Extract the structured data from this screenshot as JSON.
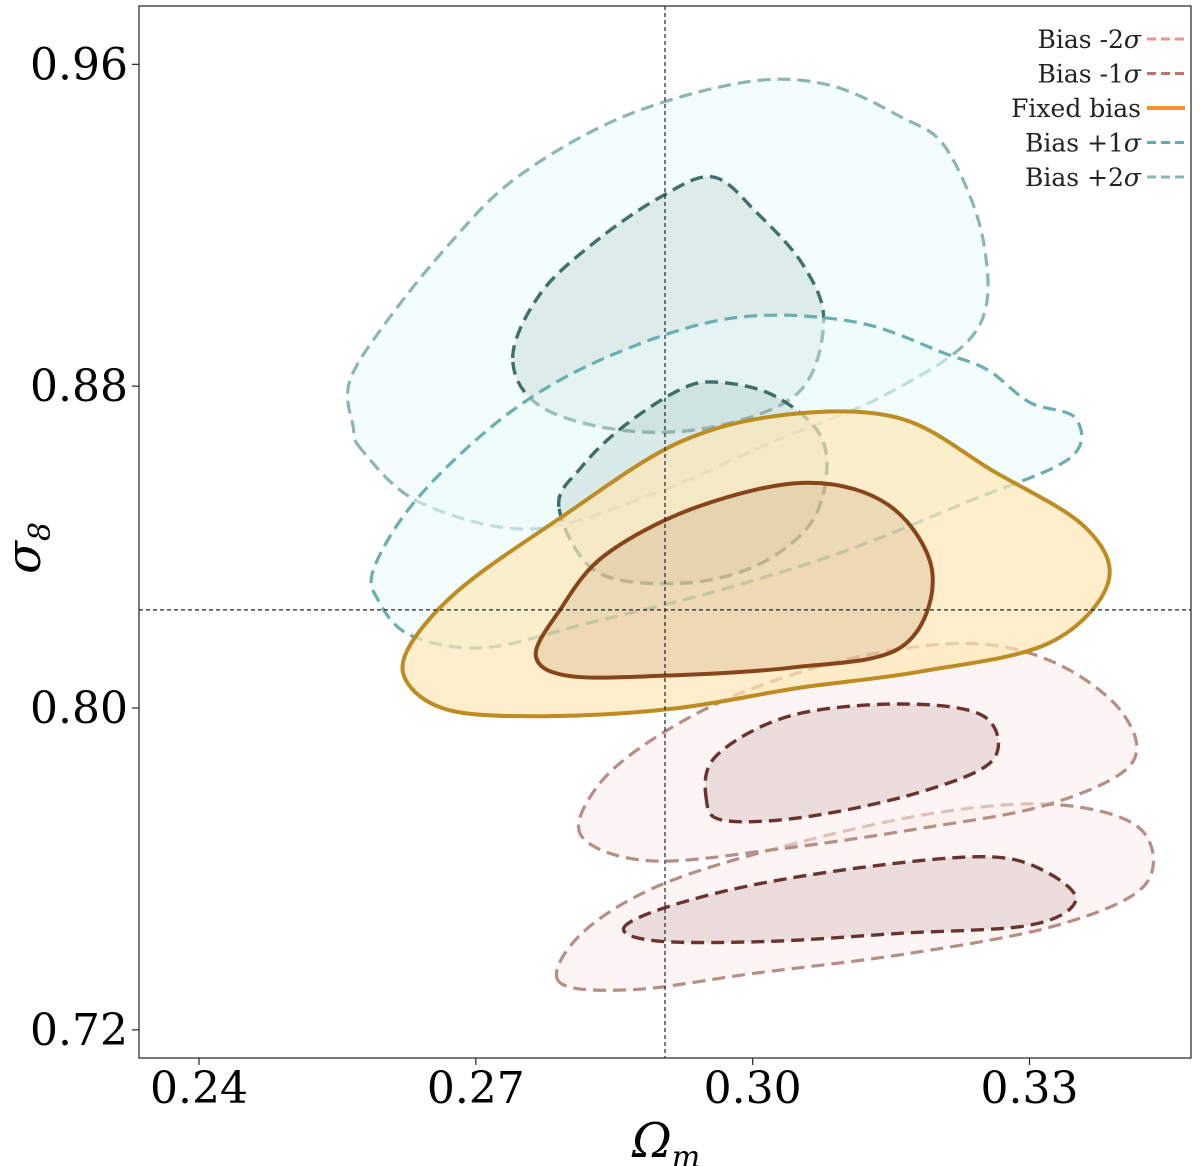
{
  "chart_data": {
    "type": "contour",
    "xlabel": {
      "base": "Ω",
      "sub": "m"
    },
    "ylabel": {
      "base": "σ",
      "sub": "8"
    },
    "xlim": [
      0.2335,
      0.3475
    ],
    "ylim": [
      0.713,
      0.9745
    ],
    "xticks": [
      0.24,
      0.27,
      0.3,
      0.33
    ],
    "xtick_labels": [
      "0.24",
      "0.27",
      "0.30",
      "0.33"
    ],
    "yticks": [
      0.72,
      0.8,
      0.88,
      0.96
    ],
    "ytick_labels": [
      "0.72",
      "0.80",
      "0.88",
      "0.96"
    ],
    "fiducial": {
      "x": 0.2905,
      "y": 0.8244
    },
    "legend_position": "top-right",
    "series": [
      {
        "name": "Bias +2σ",
        "label_base": "Bias +2",
        "label_symbol": "σ",
        "color": "#8fb5b3",
        "line_color": "#8fb5b3",
        "inner_color": "#41706c",
        "fill": "#e9fcfc",
        "style": "dashed",
        "center": [
          0.2975,
          0.8905
        ],
        "contours": {
          "outer": [
            [
              0.2577,
              0.864
            ],
            [
              0.2567,
              0.87
            ],
            [
              0.2563,
              0.881
            ],
            [
              0.26,
              0.895
            ],
            [
              0.267,
              0.915
            ],
            [
              0.2745,
              0.932
            ],
            [
              0.286,
              0.947
            ],
            [
              0.299,
              0.9555
            ],
            [
              0.308,
              0.955
            ],
            [
              0.316,
              0.947
            ],
            [
              0.321,
              0.939
            ],
            [
              0.325,
              0.916
            ],
            [
              0.3243,
              0.894
            ],
            [
              0.3145,
              0.878
            ],
            [
              0.302,
              0.866
            ],
            [
              0.289,
              0.853
            ],
            [
              0.276,
              0.8445
            ],
            [
              0.264,
              0.851
            ]
          ],
          "inner": [
            [
              0.274,
              0.887
            ],
            [
              0.277,
              0.903
            ],
            [
              0.283,
              0.916
            ],
            [
              0.29,
              0.927
            ],
            [
              0.2957,
              0.932
            ],
            [
              0.3005,
              0.923
            ],
            [
              0.3055,
              0.91
            ],
            [
              0.3077,
              0.896
            ],
            [
              0.305,
              0.8785
            ],
            [
              0.296,
              0.87
            ],
            [
              0.286,
              0.869
            ],
            [
              0.277,
              0.875
            ]
          ]
        }
      },
      {
        "name": "Bias +1σ",
        "label_base": "Bias +1",
        "label_symbol": "σ",
        "color": "#5bafae",
        "line_color": "#6aaeae",
        "inner_color": "#3e6d69",
        "fill": "#e9fcfc",
        "style": "dashed",
        "center": [
          0.2975,
          0.86
        ],
        "contours": {
          "outer": [
            [
              0.2595,
              0.8265
            ],
            [
              0.259,
              0.835
            ],
            [
              0.264,
              0.853
            ],
            [
              0.274,
              0.874
            ],
            [
              0.285,
              0.888
            ],
            [
              0.298,
              0.897
            ],
            [
              0.311,
              0.896
            ],
            [
              0.321,
              0.888
            ],
            [
              0.3255,
              0.884
            ],
            [
              0.33,
              0.876
            ],
            [
              0.335,
              0.872
            ],
            [
              0.3343,
              0.862
            ],
            [
              0.323,
              0.851
            ],
            [
              0.31,
              0.839
            ],
            [
              0.296,
              0.829
            ],
            [
              0.282,
              0.821
            ],
            [
              0.271,
              0.815
            ],
            [
              0.263,
              0.818
            ]
          ],
          "inner": [
            [
              0.279,
              0.85
            ],
            [
              0.2815,
              0.86
            ],
            [
              0.286,
              0.87
            ],
            [
              0.292,
              0.879
            ],
            [
              0.296,
              0.881
            ],
            [
              0.302,
              0.878
            ],
            [
              0.307,
              0.869
            ],
            [
              0.308,
              0.858
            ],
            [
              0.306,
              0.845
            ],
            [
              0.3,
              0.835
            ],
            [
              0.292,
              0.831
            ],
            [
              0.283,
              0.834
            ]
          ]
        }
      },
      {
        "name": "Fixed bias",
        "label_base": "Fixed bias",
        "label_symbol": "",
        "color": "#f5902c",
        "line_color": "#bd8c22",
        "inner_color": "#87451b",
        "fill": "#fde7b5",
        "style": "solid",
        "center": [
          0.301,
          0.821
        ],
        "contours": {
          "outer": [
            [
              0.263,
              0.805
            ],
            [
              0.2625,
              0.814
            ],
            [
              0.268,
              0.829
            ],
            [
              0.279,
              0.847
            ],
            [
              0.292,
              0.866
            ],
            [
              0.304,
              0.873
            ],
            [
              0.316,
              0.872
            ],
            [
              0.326,
              0.859
            ],
            [
              0.336,
              0.845
            ],
            [
              0.3385,
              0.831
            ],
            [
              0.332,
              0.816
            ],
            [
              0.318,
              0.809
            ],
            [
              0.305,
              0.805
            ],
            [
              0.292,
              0.8
            ],
            [
              0.279,
              0.798
            ],
            [
              0.268,
              0.799
            ]
          ],
          "inner": [
            [
              0.2765,
              0.813
            ],
            [
              0.279,
              0.824
            ],
            [
              0.284,
              0.838
            ],
            [
              0.294,
              0.85
            ],
            [
              0.306,
              0.856
            ],
            [
              0.315,
              0.85
            ],
            [
              0.3195,
              0.833
            ],
            [
              0.316,
              0.815
            ],
            [
              0.304,
              0.81
            ],
            [
              0.29,
              0.808
            ],
            [
              0.28,
              0.808
            ]
          ]
        }
      },
      {
        "name": "Bias -1σ",
        "label_base": "Bias -1",
        "label_symbol": "σ",
        "color": "#c0736a",
        "line_color": "#b58e87",
        "inner_color": "#6a3332",
        "fill": "#fcecea",
        "style": "dashed",
        "center": [
          0.31,
          0.785
        ],
        "contours": {
          "outer": [
            [
              0.2815,
              0.768
            ],
            [
              0.283,
              0.78
            ],
            [
              0.289,
              0.792
            ],
            [
              0.299,
              0.804
            ],
            [
              0.312,
              0.813
            ],
            [
              0.324,
              0.816
            ],
            [
              0.333,
              0.811
            ],
            [
              0.34,
              0.799
            ],
            [
              0.341,
              0.786
            ],
            [
              0.332,
              0.776
            ],
            [
              0.318,
              0.77
            ],
            [
              0.303,
              0.765
            ],
            [
              0.289,
              0.762
            ]
          ],
          "inner": [
            [
              0.295,
              0.777
            ],
            [
              0.296,
              0.788
            ],
            [
              0.304,
              0.798
            ],
            [
              0.316,
              0.801
            ],
            [
              0.325,
              0.798
            ],
            [
              0.326,
              0.787
            ],
            [
              0.318,
              0.779
            ],
            [
              0.306,
              0.773
            ],
            [
              0.297,
              0.772
            ]
          ]
        }
      },
      {
        "name": "Bias -2σ",
        "label_base": "Bias -2",
        "label_symbol": "σ",
        "color": "#f09384",
        "line_color": "#b58e87",
        "inner_color": "#6a3332",
        "fill": "#fcecea",
        "style": "dashed",
        "center": [
          0.31,
          0.76
        ],
        "contours": {
          "outer": [
            [
              0.279,
              0.732
            ],
            [
              0.2815,
              0.744
            ],
            [
              0.29,
              0.756
            ],
            [
              0.304,
              0.766
            ],
            [
              0.32,
              0.774
            ],
            [
              0.333,
              0.776
            ],
            [
              0.342,
              0.77
            ],
            [
              0.3425,
              0.756
            ],
            [
              0.333,
              0.746
            ],
            [
              0.317,
              0.739
            ],
            [
              0.3,
              0.734
            ],
            [
              0.287,
              0.73
            ]
          ],
          "inner": [
            [
              0.286,
              0.745
            ],
            [
              0.29,
              0.75
            ],
            [
              0.3,
              0.756
            ],
            [
              0.314,
              0.761
            ],
            [
              0.326,
              0.763
            ],
            [
              0.332,
              0.759
            ],
            [
              0.335,
              0.752
            ],
            [
              0.33,
              0.746
            ],
            [
              0.316,
              0.744
            ],
            [
              0.302,
              0.742
            ],
            [
              0.29,
              0.742
            ]
          ]
        }
      }
    ]
  }
}
